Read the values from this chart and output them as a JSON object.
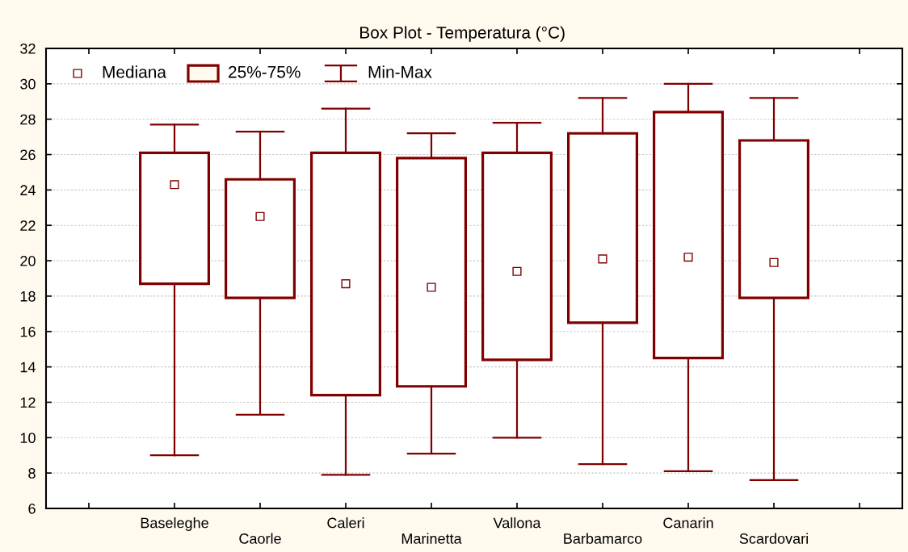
{
  "chart_data": {
    "type": "box",
    "title": "Box Plot - Temperatura (°C)",
    "categories": [
      "Baseleghe",
      "Caorle",
      "Caleri",
      "Marinetta",
      "Vallona",
      "Barbamarco",
      "Canarin",
      "Scardovari"
    ],
    "boxes": [
      {
        "low": 9.0,
        "q1": 18.7,
        "median": 24.3,
        "q3": 26.1,
        "high": 27.7
      },
      {
        "low": 11.3,
        "q1": 17.9,
        "median": 22.5,
        "q3": 24.6,
        "high": 27.3
      },
      {
        "low": 7.9,
        "q1": 12.4,
        "median": 18.7,
        "q3": 26.1,
        "high": 28.6
      },
      {
        "low": 9.1,
        "q1": 12.9,
        "median": 18.5,
        "q3": 25.8,
        "high": 27.2
      },
      {
        "low": 10.0,
        "q1": 14.4,
        "median": 19.4,
        "q3": 26.1,
        "high": 27.8
      },
      {
        "low": 8.5,
        "q1": 16.5,
        "median": 20.1,
        "q3": 27.2,
        "high": 29.2
      },
      {
        "low": 8.1,
        "q1": 14.5,
        "median": 20.2,
        "q3": 28.4,
        "high": 30.0
      },
      {
        "low": 7.6,
        "q1": 17.9,
        "median": 19.9,
        "q3": 26.8,
        "high": 29.2
      }
    ],
    "color": "#800000",
    "marker": "square",
    "annotations": [
      "Mediana",
      "25%-75%",
      "Min-Max"
    ],
    "ylim": [
      6,
      32
    ],
    "yticks": [
      6,
      8,
      10,
      12,
      14,
      16,
      18,
      20,
      22,
      24,
      26,
      28,
      30,
      32
    ],
    "grid": "y"
  }
}
